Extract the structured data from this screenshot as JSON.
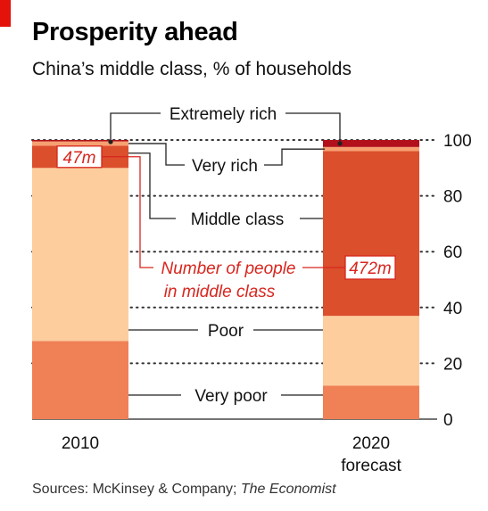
{
  "title": "Prosperity ahead",
  "subtitle": "China’s middle class, % of households",
  "source": {
    "prefix": "Sources: McKinsey & Company; ",
    "italic": "The Economist"
  },
  "chart_data": {
    "type": "bar",
    "stacked": true,
    "categories": [
      "2010",
      "2020\nforecast"
    ],
    "category_lines": [
      [
        "2010"
      ],
      [
        "2020",
        "forecast"
      ]
    ],
    "ylim": [
      0,
      100
    ],
    "yticks": [
      0,
      20,
      40,
      60,
      80,
      100
    ],
    "grid": "dotted",
    "series": [
      {
        "name": "Very poor",
        "values": [
          28,
          12
        ],
        "color": "#f08055"
      },
      {
        "name": "Poor",
        "values": [
          62,
          25
        ],
        "color": "#fdcd9d"
      },
      {
        "name": "Middle class",
        "values": [
          8,
          59
        ],
        "color": "#dc4f2c"
      },
      {
        "name": "Very rich",
        "values": [
          1.5,
          1.5
        ],
        "color": "#f7a071"
      },
      {
        "name": "Extremely rich",
        "values": [
          0.5,
          2.5
        ],
        "color": "#b2101a"
      }
    ],
    "annotations": {
      "middle_class_people": {
        "label_lines": [
          "Number of people",
          "in middle class"
        ],
        "values": [
          "47m",
          "472m"
        ],
        "color": "#d7261e"
      }
    }
  }
}
